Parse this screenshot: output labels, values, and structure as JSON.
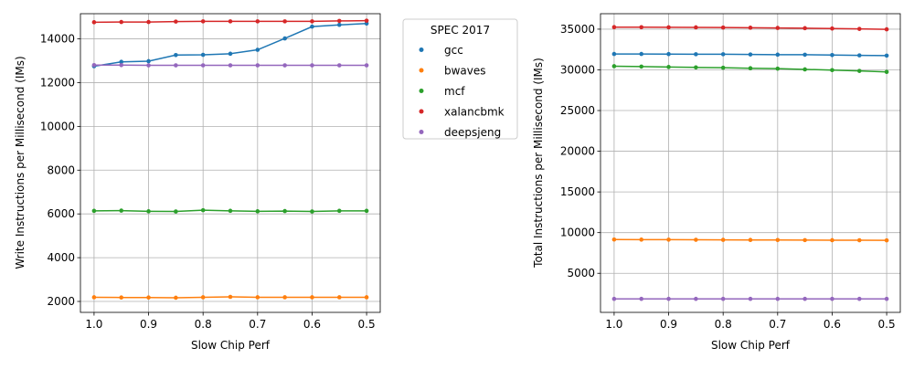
{
  "legend": {
    "title": "SPEC 2017",
    "placement": "outside-right-of-first-chart"
  },
  "chart_data": [
    {
      "type": "line",
      "xlabel": "Slow Chip Perf",
      "ylabel": "Write Instructions per Millisecond (IMs)",
      "x": [
        1.0,
        0.95,
        0.9,
        0.85,
        0.8,
        0.75,
        0.7,
        0.65,
        0.6,
        0.55,
        0.5
      ],
      "x_ticks": [
        "1.0",
        "0.9",
        "0.8",
        "0.7",
        "0.6",
        "0.5"
      ],
      "y_ticks": [
        "2000",
        "4000",
        "6000",
        "8000",
        "10000",
        "12000",
        "14000"
      ],
      "xlim": [
        1.025,
        0.475
      ],
      "ylim": [
        1500,
        15150
      ],
      "x_inverted": true,
      "grid": true,
      "series": [
        {
          "name": "gcc",
          "color": "#1f77b4",
          "values": [
            12750,
            12950,
            12980,
            13260,
            13270,
            13320,
            13500,
            14020,
            14560,
            14640,
            14700
          ]
        },
        {
          "name": "bwaves",
          "color": "#ff7f0e",
          "values": [
            2190,
            2180,
            2180,
            2170,
            2190,
            2210,
            2190,
            2190,
            2190,
            2190,
            2190
          ]
        },
        {
          "name": "mcf",
          "color": "#2ca02c",
          "values": [
            6140,
            6150,
            6120,
            6110,
            6170,
            6140,
            6120,
            6130,
            6110,
            6140,
            6140
          ]
        },
        {
          "name": "xalancbmk",
          "color": "#d62728",
          "values": [
            14760,
            14770,
            14770,
            14790,
            14800,
            14800,
            14800,
            14800,
            14800,
            14820,
            14830
          ]
        },
        {
          "name": "deepsjeng",
          "color": "#9467bd",
          "values": [
            12800,
            12800,
            12790,
            12790,
            12790,
            12790,
            12790,
            12790,
            12790,
            12790,
            12790
          ]
        }
      ]
    },
    {
      "type": "line",
      "xlabel": "Slow Chip Perf",
      "ylabel": "Total Instructions per Millisecond (IMs)",
      "x": [
        1.0,
        0.95,
        0.9,
        0.85,
        0.8,
        0.75,
        0.7,
        0.65,
        0.6,
        0.55,
        0.5
      ],
      "x_ticks": [
        "1.0",
        "0.9",
        "0.8",
        "0.7",
        "0.6",
        "0.5"
      ],
      "y_ticks": [
        "5000",
        "10000",
        "15000",
        "20000",
        "25000",
        "30000",
        "35000"
      ],
      "xlim": [
        1.025,
        0.475
      ],
      "ylim": [
        200,
        36900
      ],
      "x_inverted": true,
      "grid": true,
      "series": [
        {
          "name": "gcc",
          "color": "#1f77b4",
          "values": [
            31950,
            31950,
            31940,
            31920,
            31920,
            31890,
            31870,
            31860,
            31820,
            31780,
            31750
          ]
        },
        {
          "name": "bwaves",
          "color": "#ff7f0e",
          "values": [
            9150,
            9140,
            9130,
            9120,
            9110,
            9100,
            9090,
            9080,
            9070,
            9060,
            9050
          ]
        },
        {
          "name": "mcf",
          "color": "#2ca02c",
          "values": [
            30450,
            30400,
            30350,
            30300,
            30260,
            30200,
            30150,
            30060,
            29970,
            29870,
            29750
          ]
        },
        {
          "name": "xalancbmk",
          "color": "#d62728",
          "values": [
            35250,
            35240,
            35230,
            35220,
            35200,
            35180,
            35150,
            35120,
            35080,
            35030,
            34980
          ]
        },
        {
          "name": "deepsjeng",
          "color": "#9467bd",
          "values": [
            1860,
            1860,
            1860,
            1860,
            1860,
            1860,
            1860,
            1860,
            1860,
            1860,
            1860
          ]
        }
      ]
    }
  ]
}
